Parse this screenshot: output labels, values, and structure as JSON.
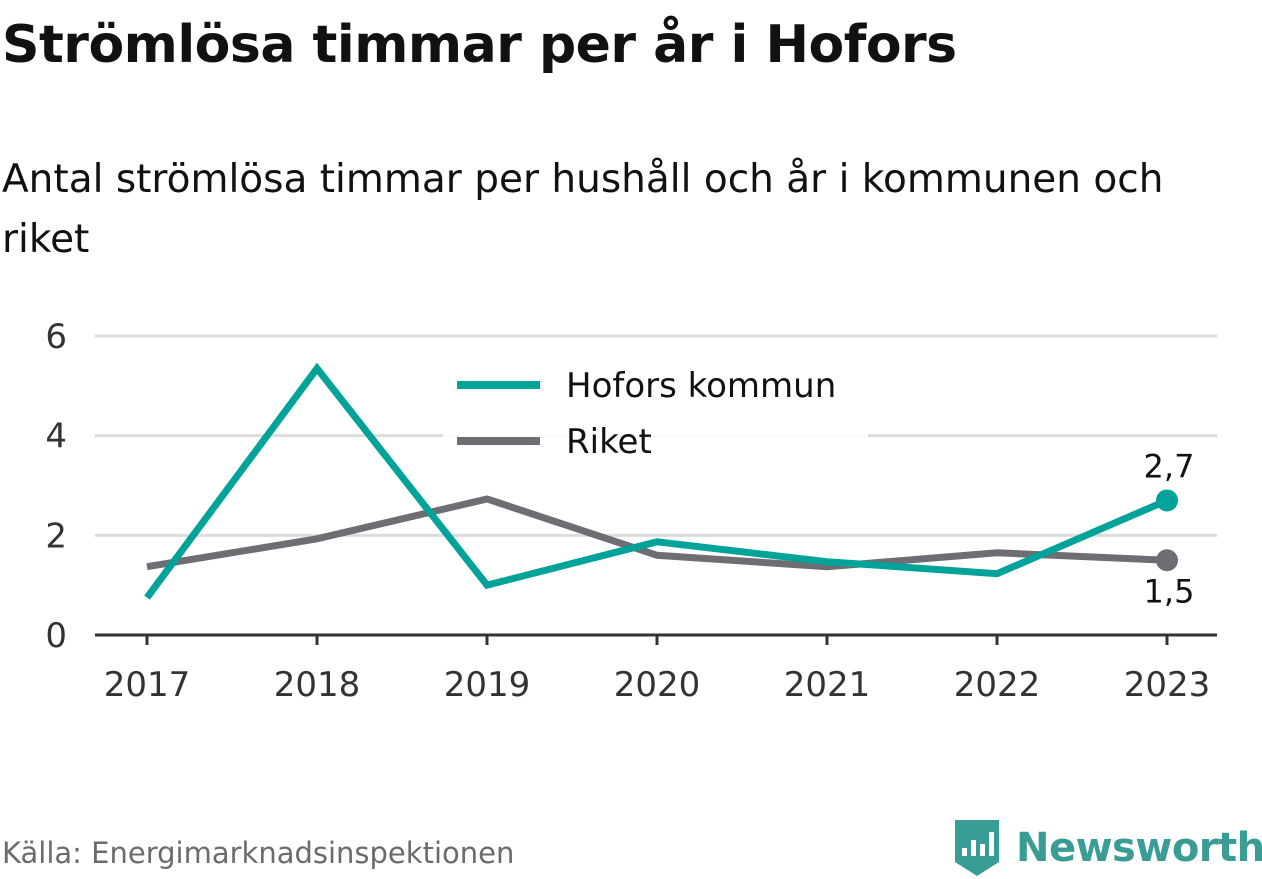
{
  "header": {
    "title": "Strömlösa timmar per år i Hofors",
    "subtitle": "Antal strömlösa timmar per hushåll och år i kommunen och riket"
  },
  "footer": {
    "source": "Källa: Energimarknadsinspektionen",
    "brand": "Newsworthy",
    "brand_icon": "bar-chart-pin-icon",
    "brand_color": "#3a9d95"
  },
  "chart_data": {
    "type": "line",
    "x": [
      "2017",
      "2018",
      "2019",
      "2020",
      "2021",
      "2022",
      "2023"
    ],
    "ylim": [
      0,
      6
    ],
    "yticks": [
      "0",
      "2",
      "4",
      "6"
    ],
    "grid": true,
    "legend_position": "top-center",
    "series": [
      {
        "name": "Hofors kommun",
        "color": "#00a39a",
        "values": [
          0.75,
          5.35,
          1.0,
          1.87,
          1.47,
          1.23,
          2.7
        ],
        "end_label": "2,7"
      },
      {
        "name": "Riket",
        "color": "#6e6d73",
        "values": [
          1.37,
          1.93,
          2.73,
          1.6,
          1.37,
          1.65,
          1.5
        ],
        "end_label": "1,5"
      }
    ]
  }
}
